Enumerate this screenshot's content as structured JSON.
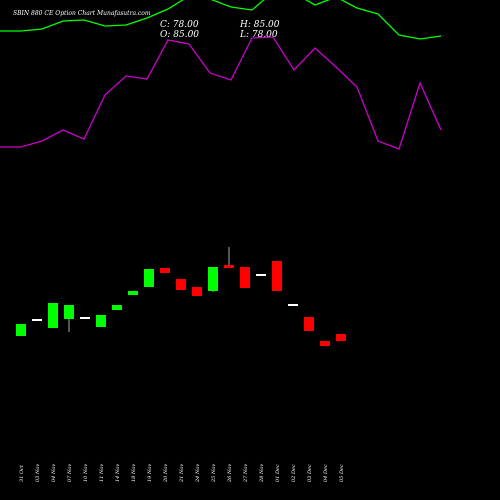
{
  "title": "SBIN 880 CE Option Chart Munafasutra.com",
  "ohlc": {
    "close": "C: 78.00",
    "high": "H: 85.00",
    "open": "O: 85.00",
    "low": "L: 78.00"
  },
  "colors": {
    "background": "#000000",
    "up": "#00ff00",
    "down": "#ff0000",
    "neutral": "#ffffff",
    "upper_line": "#00ff00",
    "lower_line": "#cc00cc",
    "text": "#ffffff"
  },
  "chart_data": {
    "type": "candlestick",
    "grid": false,
    "dates": [
      "31 Oct",
      "03 Nov",
      "04 Nov",
      "07 Nov",
      "10 Nov",
      "11 Nov",
      "14 Nov",
      "18 Nov",
      "19 Nov",
      "20 Nov",
      "21 Nov",
      "24 Nov",
      "25 Nov",
      "26 Nov",
      "27 Nov",
      "28 Nov",
      "01 Dec",
      "02 Dec",
      "03 Dec",
      "04 Dec",
      "05 Dec"
    ],
    "candles": [
      {
        "open": 83,
        "high": 95,
        "low": 83,
        "close": 95,
        "dir": "up"
      },
      {
        "open": 100,
        "high": 100,
        "low": 100,
        "close": 100,
        "dir": "flat"
      },
      {
        "open": 91,
        "high": 116,
        "low": 91,
        "close": 116,
        "dir": "up"
      },
      {
        "open": 100,
        "high": 114,
        "low": 87,
        "close": 114,
        "dir": "up"
      },
      {
        "open": 102,
        "high": 102,
        "low": 102,
        "close": 102,
        "dir": "flat"
      },
      {
        "open": 92,
        "high": 104,
        "low": 92,
        "close": 104,
        "dir": "up"
      },
      {
        "open": 109,
        "high": 114,
        "low": 109,
        "close": 114,
        "dir": "up"
      },
      {
        "open": 124,
        "high": 128,
        "low": 124,
        "close": 128,
        "dir": "up"
      },
      {
        "open": 132,
        "high": 150,
        "low": 132,
        "close": 150,
        "dir": "up"
      },
      {
        "open": 151,
        "high": 151,
        "low": 146,
        "close": 146,
        "dir": "down"
      },
      {
        "open": 140,
        "high": 140,
        "low": 129,
        "close": 129,
        "dir": "down"
      },
      {
        "open": 132,
        "high": 132,
        "low": 123,
        "close": 123,
        "dir": "down"
      },
      {
        "open": 128,
        "high": 152,
        "low": 127,
        "close": 152,
        "dir": "up"
      },
      {
        "open": 154,
        "high": 172,
        "low": 151,
        "close": 151,
        "dir": "down"
      },
      {
        "open": 152,
        "high": 152,
        "low": 131,
        "close": 131,
        "dir": "down"
      },
      {
        "open": 145,
        "high": 145,
        "low": 145,
        "close": 145,
        "dir": "flat"
      },
      {
        "open": 158,
        "high": 158,
        "low": 128,
        "close": 128,
        "dir": "down"
      },
      {
        "open": 115,
        "high": 115,
        "low": 115,
        "close": 115,
        "dir": "flat"
      },
      {
        "open": 102,
        "high": 102,
        "low": 88,
        "close": 88,
        "dir": "down"
      },
      {
        "open": 78,
        "high": 78,
        "low": 73,
        "close": 73,
        "dir": "down"
      },
      {
        "open": 85,
        "high": 85,
        "low": 78,
        "close": 78,
        "dir": "down"
      }
    ],
    "upper_line": [
      388,
      388,
      390,
      398,
      399,
      393,
      394,
      401,
      410,
      423,
      420,
      412,
      409,
      427,
      426,
      414,
      422,
      411,
      405,
      384,
      380,
      383
    ],
    "lower_line": [
      272,
      272,
      278,
      289,
      280,
      324,
      343,
      340,
      379,
      375,
      346,
      339,
      381,
      382,
      349,
      371,
      352,
      332,
      278,
      270,
      336,
      289
    ],
    "line_points_step": 21
  }
}
